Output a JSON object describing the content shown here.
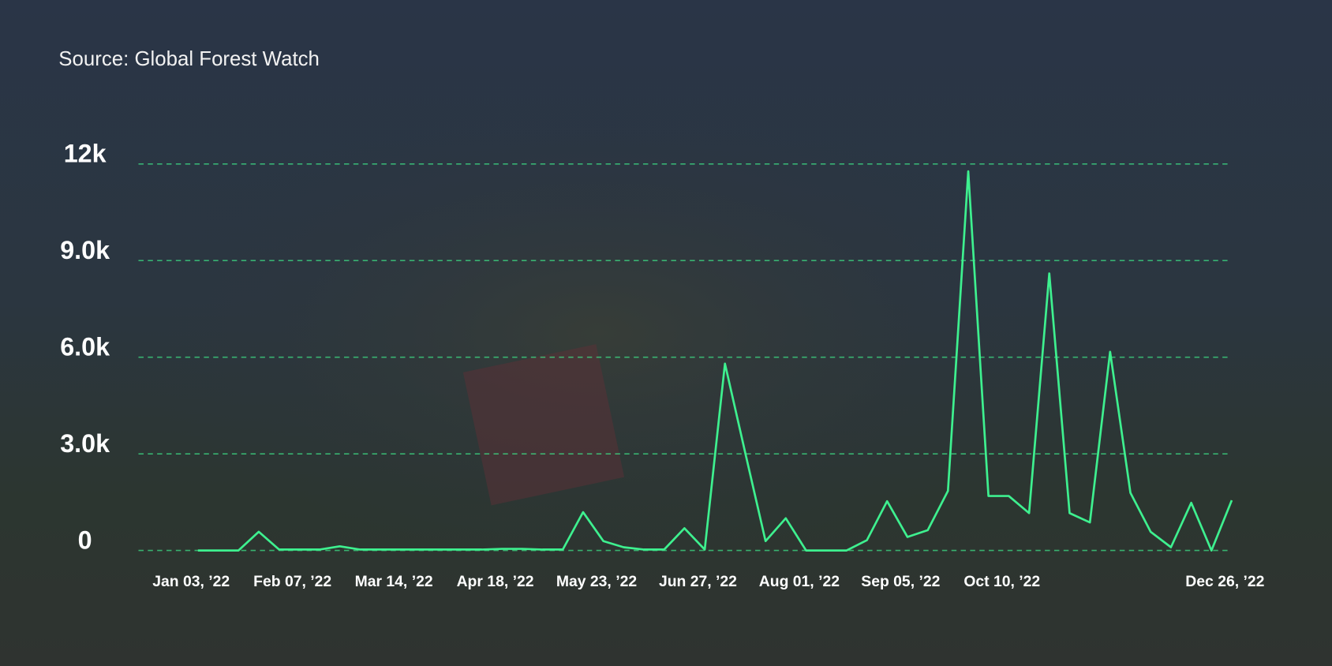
{
  "chart_data": {
    "type": "line",
    "source": "Source: Global Forest Watch",
    "categories": [
      "Jan 03, ’22",
      null,
      null,
      null,
      null,
      "Feb 07, ’22",
      null,
      null,
      null,
      null,
      "Mar 14, ’22",
      null,
      null,
      null,
      null,
      "Apr 18, ’22",
      null,
      null,
      null,
      null,
      "May 23, ’22",
      null,
      null,
      null,
      null,
      "Jun 27, ’22",
      null,
      null,
      null,
      null,
      "Aug 01, ’22",
      null,
      null,
      null,
      null,
      "Sep 05, ’22",
      null,
      null,
      null,
      null,
      "Oct 10, ’22",
      null,
      null,
      null,
      null,
      null,
      null,
      null,
      null,
      null,
      null,
      "Dec 26, ’22"
    ],
    "series": [
      {
        "color": "#3ef08f",
        "values": [
          0,
          0,
          0,
          580,
          30,
          30,
          30,
          130,
          30,
          30,
          30,
          30,
          30,
          30,
          30,
          50,
          50,
          30,
          30,
          1190,
          290,
          100,
          30,
          30,
          690,
          30,
          5800,
          3030,
          290,
          1000,
          0,
          0,
          0,
          320,
          1530,
          420,
          630,
          1850,
          11770,
          1690,
          1690,
          1160,
          8600,
          1160,
          870,
          6170,
          1790,
          580,
          100,
          1480,
          0,
          1560
        ]
      }
    ],
    "ylim": [
      0,
      12000
    ],
    "yticks": [
      0,
      {
        "value": 3000,
        "label": "3.0k"
      },
      {
        "value": 6000,
        "label": "6.0k"
      },
      {
        "value": 9000,
        "label": "9.0k"
      },
      {
        "value": 12000,
        "label": "12k"
      }
    ],
    "grid": true
  }
}
